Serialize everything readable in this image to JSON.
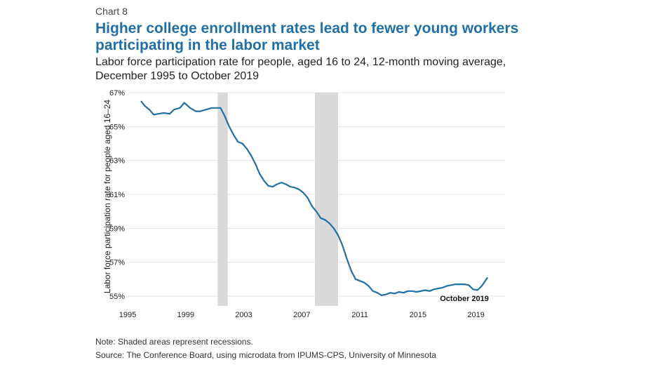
{
  "header": {
    "chart_number": "Chart 8",
    "title": "Higher college enrollment rates lead to fewer young workers participating in the labor market",
    "subtitle": "Labor force participation rate for people, aged 16 to 24, 12-month moving average, December 1995 to October 2019"
  },
  "footer": {
    "note": "Note: Shaded areas represent recessions.",
    "source": "Source: The Conference Board, using microdata from IPUMS-CPS, University of Minnesota"
  },
  "colors": {
    "line": "#1f6fa8",
    "recession": "#d9d9d9",
    "title": "#1f6fa8"
  },
  "chart_data": {
    "type": "line",
    "title": "Higher college enrollment rates lead to fewer young workers participating in the labor market",
    "ylabel": "Labor force participation rate for people aged 16–24",
    "xlabel": "",
    "xlim": [
      1995,
      2021
    ],
    "ylim": [
      55,
      67
    ],
    "x_ticks": [
      1995,
      1999,
      2003,
      2007,
      2011,
      2015,
      2019
    ],
    "x_tick_labels": [
      "1995",
      "1999",
      "2003",
      "2007",
      "2011",
      "2015",
      "2019"
    ],
    "y_ticks": [
      55,
      57,
      59,
      61,
      63,
      65,
      67
    ],
    "y_tick_labels": [
      "55%",
      "57%",
      "59%",
      "61%",
      "63%",
      "65%",
      "67%"
    ],
    "grid": "horizontal",
    "annotation": {
      "text": "October 2019",
      "x": 2018.2,
      "y": 55.2
    },
    "recessions": [
      {
        "start": 2001.2,
        "end": 2001.9
      },
      {
        "start": 2007.9,
        "end": 2009.5
      }
    ],
    "series": [
      {
        "x": [
          1995.92,
          1996.2,
          1996.5,
          1996.8,
          1997.1,
          1997.5,
          1997.9,
          1998.2,
          1998.6,
          1998.9,
          1999.3,
          1999.7,
          2000.0,
          2000.4,
          2000.8,
          2001.1,
          2001.4,
          2001.7,
          2002.0,
          2002.3,
          2002.6,
          2002.9,
          2003.2,
          2003.5,
          2003.8,
          2004.1,
          2004.4,
          2004.7,
          2005.0,
          2005.3,
          2005.6,
          2005.9,
          2006.2,
          2006.5,
          2006.8,
          2007.1,
          2007.4,
          2007.7,
          2008.0,
          2008.3,
          2008.6,
          2008.9,
          2009.2,
          2009.5,
          2009.8,
          2010.1,
          2010.4,
          2010.7,
          2011.0,
          2011.3,
          2011.6,
          2011.9,
          2012.2,
          2012.5,
          2012.8,
          2013.1,
          2013.4,
          2013.7,
          2014.0,
          2014.3,
          2014.6,
          2014.9,
          2015.2,
          2015.5,
          2015.8,
          2016.1,
          2016.4,
          2016.7,
          2017.0,
          2017.3,
          2017.6,
          2017.9,
          2018.2,
          2018.5,
          2018.8,
          2019.1,
          2019.4,
          2019.8
        ],
        "y": [
          66.5,
          66.2,
          66.0,
          65.7,
          65.75,
          65.8,
          65.75,
          66.0,
          66.1,
          66.4,
          66.1,
          65.9,
          65.9,
          66.0,
          66.1,
          66.1,
          66.1,
          65.6,
          65.0,
          64.5,
          64.1,
          64.0,
          63.7,
          63.3,
          62.8,
          62.2,
          61.8,
          61.5,
          61.45,
          61.6,
          61.7,
          61.6,
          61.45,
          61.4,
          61.3,
          61.1,
          60.8,
          60.3,
          60.0,
          59.6,
          59.5,
          59.3,
          59.0,
          58.6,
          58.0,
          57.2,
          56.5,
          56.0,
          55.9,
          55.8,
          55.6,
          55.3,
          55.2,
          55.05,
          55.1,
          55.2,
          55.15,
          55.25,
          55.2,
          55.3,
          55.3,
          55.25,
          55.3,
          55.35,
          55.3,
          55.4,
          55.45,
          55.5,
          55.6,
          55.65,
          55.7,
          55.7,
          55.7,
          55.65,
          55.4,
          55.35,
          55.6,
          56.1
        ]
      }
    ]
  }
}
